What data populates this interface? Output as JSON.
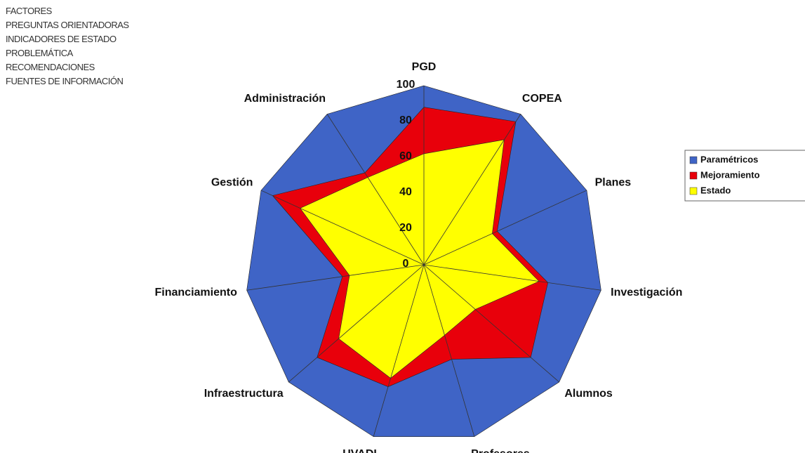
{
  "menu": [
    "FACTORES",
    "PREGUNTAS ORIENTADORAS",
    "INDICADORES DE ESTADO",
    "PROBLEMÁTICA",
    "RECOMENDACIONES",
    "FUENTES DE INFORMACIÓN"
  ],
  "chart_data": {
    "type": "radar",
    "categories": [
      "PGD",
      "COPEA",
      "Planes",
      "Investigación",
      "Alumnos",
      "Profesores",
      "UVADI",
      "Infraestructura",
      "Financiamiento",
      "Gestión",
      "Administración"
    ],
    "series": [
      {
        "name": "Paramétricos",
        "color": "#3f64c6",
        "values": [
          100,
          100,
          100,
          100,
          100,
          100,
          100,
          100,
          100,
          100,
          100
        ]
      },
      {
        "name": "Mejoramiento",
        "color": "#e8000b",
        "values": [
          88,
          95,
          45,
          70,
          79,
          55,
          71,
          79,
          46,
          93,
          61
        ]
      },
      {
        "name": "Estado",
        "color": "#ffff00",
        "values": [
          62,
          83,
          42,
          65,
          38,
          41,
          66,
          63,
          42,
          76,
          58
        ]
      }
    ],
    "ylim": [
      0,
      100
    ],
    "yticks": [
      0,
      20,
      40,
      60,
      80,
      100
    ]
  }
}
